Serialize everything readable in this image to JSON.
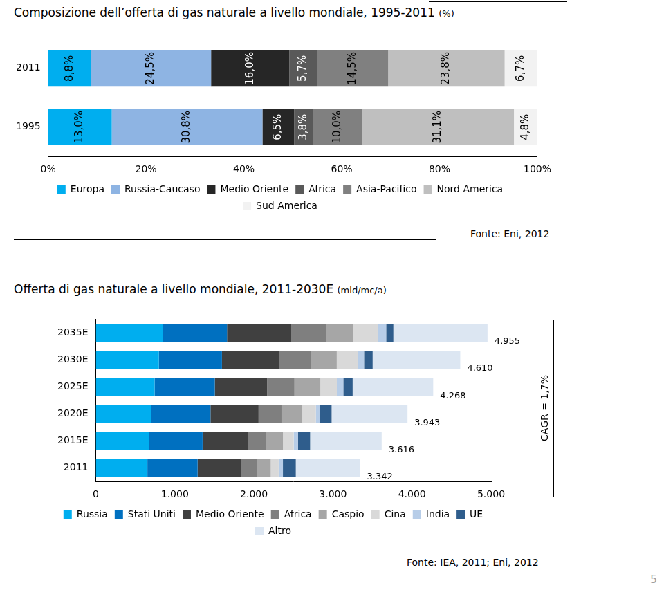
{
  "chart_data": [
    {
      "type": "bar",
      "title": "Composizione dell’offerta di gas naturale a livello mondiale, 1995-2011",
      "subtitle": "(%)",
      "orientation": "horizontal",
      "stacked": true,
      "grid": false,
      "legend": "bottom",
      "data_labels": true,
      "categories": [
        "2011",
        "1995"
      ],
      "xlim": [
        0,
        100
      ],
      "xticks": [
        {
          "value": 0,
          "label": "0%"
        },
        {
          "value": 20,
          "label": "20%"
        },
        {
          "value": 40,
          "label": "40%"
        },
        {
          "value": 60,
          "label": "60%"
        },
        {
          "value": 80,
          "label": "80%"
        },
        {
          "value": 100,
          "label": "100%"
        }
      ],
      "series": [
        {
          "name": "Europa",
          "color": "#00AEEF",
          "values": [
            8.8,
            13.0
          ],
          "value_labels": [
            "8,8%",
            "13,0%"
          ]
        },
        {
          "name": "Russia-Caucaso",
          "color": "#8EB4E3",
          "values": [
            24.5,
            30.8
          ],
          "value_labels": [
            "24,5%",
            "30,8%"
          ]
        },
        {
          "name": "Medio Oriente",
          "color": "#262626",
          "values": [
            16.0,
            6.5
          ],
          "value_labels": [
            "16,0%",
            "6,5%"
          ]
        },
        {
          "name": "Africa",
          "color": "#595959",
          "values": [
            5.7,
            3.8
          ],
          "value_labels": [
            "5,7%",
            "3,8%"
          ]
        },
        {
          "name": "Asia-Pacifico",
          "color": "#808080",
          "values": [
            14.5,
            10.0
          ],
          "value_labels": [
            "14,5%",
            "10,0%"
          ]
        },
        {
          "name": "Nord America",
          "color": "#BFBFBF",
          "values": [
            23.8,
            31.1
          ],
          "value_labels": [
            "23,8%",
            "31,1%"
          ]
        },
        {
          "name": "Sud America",
          "color": "#F2F2F2",
          "values": [
            6.7,
            4.8
          ],
          "value_labels": [
            "6,7%",
            "4,8%"
          ]
        }
      ],
      "source": "Fonte: Eni, 2012"
    },
    {
      "type": "bar",
      "title": "Offerta di gas naturale a livello mondiale, 2011-2030E",
      "subtitle": "(mld/mc/a)",
      "orientation": "horizontal",
      "stacked": true,
      "grid": false,
      "legend": "bottom",
      "categories": [
        "2035E",
        "2030E",
        "2025E",
        "2020E",
        "2015E",
        "2011"
      ],
      "xlim": [
        0,
        5000
      ],
      "xticks": [
        0,
        {
          "value": 1000,
          "label": "1.000"
        },
        {
          "value": 2000,
          "label": "2.000"
        },
        {
          "value": 3000,
          "label": "3.000"
        },
        {
          "value": 4000,
          "label": "4.000"
        },
        {
          "value": 5000,
          "label": "5.000"
        }
      ],
      "series": [
        {
          "name": "Russia",
          "color": "#00AEEF",
          "values": [
            853,
            798,
            744,
            698,
            671,
            653
          ]
        },
        {
          "name": "Stati Uniti",
          "color": "#0070C0",
          "values": [
            807,
            798,
            762,
            753,
            680,
            635
          ]
        },
        {
          "name": "Medio Oriente",
          "color": "#404040",
          "values": [
            816,
            726,
            662,
            608,
            571,
            553
          ]
        },
        {
          "name": "Africa",
          "color": "#7F7F7F",
          "values": [
            435,
            399,
            345,
            290,
            227,
            200
          ]
        },
        {
          "name": "Caspio",
          "color": "#A6A6A6",
          "values": [
            345,
            327,
            327,
            263,
            218,
            172
          ]
        },
        {
          "name": "Cina",
          "color": "#D9D9D9",
          "values": [
            317,
            272,
            209,
            172,
            136,
            100
          ]
        },
        {
          "name": "India",
          "color": "#B7CDE8",
          "values": [
            100,
            73,
            82,
            54,
            54,
            54
          ]
        },
        {
          "name": "UE",
          "color": "#2F5D8C",
          "values": [
            91,
            109,
            118,
            145,
            154,
            163
          ]
        },
        {
          "name": "Altro",
          "color": "#DCE6F2",
          "values": [
            1191,
            1108,
            1019,
            960,
            905,
            812
          ]
        }
      ],
      "totals": [
        4955,
        4610,
        4268,
        3943,
        3616,
        3342
      ],
      "total_labels": [
        "4.955",
        "4.610",
        "4.268",
        "3.943",
        "3.616",
        "3.342"
      ],
      "annotation": "CAGR = 1,7%",
      "source": "Fonte: IEA, 2011; Eni, 2012"
    }
  ],
  "page_number": "5"
}
